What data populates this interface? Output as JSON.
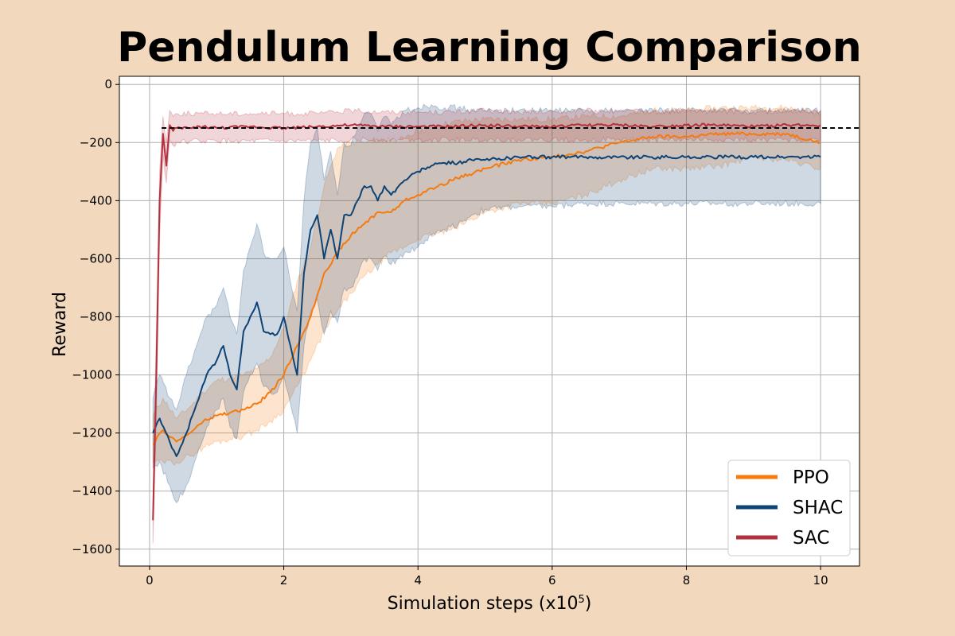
{
  "chart_data": {
    "type": "line",
    "title": "Pendulum Learning Comparison",
    "xlabel": "Simulation steps (x10",
    "xlabel_sup": "5",
    "xlabel_close": ")",
    "ylabel": "Reward",
    "xlim": [
      -0.45,
      10.58
    ],
    "ylim": [
      -1658,
      28
    ],
    "xticks": [
      0,
      2,
      4,
      6,
      8,
      10
    ],
    "xtick_labels": [
      "0",
      "2",
      "4",
      "6",
      "8",
      "10"
    ],
    "yticks": [
      0,
      -200,
      -400,
      -600,
      -800,
      -1000,
      -1200,
      -1400,
      -1600
    ],
    "ytick_labels": [
      "0",
      "−200",
      "−400",
      "−600",
      "−800",
      "−1000",
      "−1200",
      "−1400",
      "−1600"
    ],
    "grid": true,
    "legend_position": "lower-right",
    "reference_line": {
      "y": -150,
      "style": "dashed",
      "color": "#000000"
    },
    "series": [
      {
        "name": "PPO",
        "color": "#f57a0f",
        "x": [
          0.05,
          0.2,
          0.4,
          0.6,
          0.8,
          1.0,
          1.2,
          1.4,
          1.6,
          1.8,
          2.0,
          2.2,
          2.4,
          2.6,
          2.8,
          3.0,
          3.2,
          3.4,
          3.6,
          3.8,
          4.0,
          4.5,
          5.0,
          5.5,
          6.0,
          6.5,
          7.0,
          7.5,
          8.0,
          8.5,
          9.0,
          9.5,
          10.0
        ],
        "y": [
          -1240,
          -1190,
          -1230,
          -1200,
          -1160,
          -1140,
          -1130,
          -1120,
          -1100,
          -1060,
          -1000,
          -900,
          -800,
          -650,
          -580,
          -520,
          -480,
          -440,
          -440,
          -400,
          -380,
          -330,
          -290,
          -260,
          -250,
          -230,
          -200,
          -180,
          -180,
          -170,
          -170,
          -170,
          -200
        ],
        "low": [
          -1300,
          -1300,
          -1300,
          -1280,
          -1250,
          -1230,
          -1220,
          -1210,
          -1190,
          -1160,
          -1120,
          -1040,
          -950,
          -850,
          -780,
          -720,
          -660,
          -620,
          -580,
          -560,
          -530,
          -500,
          -440,
          -410,
          -410,
          -380,
          -330,
          -290,
          -290,
          -280,
          -250,
          -260,
          -290
        ],
        "high": [
          -1140,
          -1080,
          -1150,
          -1110,
          -1060,
          -1020,
          -1010,
          -1000,
          -980,
          -940,
          -840,
          -680,
          -560,
          -350,
          -220,
          -200,
          -200,
          -190,
          -190,
          -190,
          -160,
          -130,
          -120,
          -120,
          -120,
          -110,
          -110,
          -90,
          -90,
          -80,
          -80,
          -80,
          -100
        ]
      },
      {
        "name": "SHAC",
        "color": "#0e4375",
        "x": [
          0.05,
          0.15,
          0.3,
          0.4,
          0.55,
          0.7,
          0.85,
          1.0,
          1.1,
          1.2,
          1.3,
          1.4,
          1.5,
          1.6,
          1.7,
          1.8,
          1.9,
          2.0,
          2.1,
          2.2,
          2.3,
          2.4,
          2.5,
          2.6,
          2.7,
          2.8,
          2.9,
          3.0,
          3.1,
          3.2,
          3.3,
          3.4,
          3.5,
          3.6,
          3.8,
          4.0,
          4.2,
          4.4,
          4.6,
          4.8,
          5.0,
          5.5,
          6.0,
          6.5,
          7.0,
          8.0,
          9.0,
          10.0
        ],
        "y": [
          -1200,
          -1150,
          -1230,
          -1280,
          -1200,
          -1100,
          -1000,
          -950,
          -900,
          -1000,
          -1050,
          -850,
          -800,
          -750,
          -850,
          -860,
          -860,
          -800,
          -900,
          -1000,
          -650,
          -500,
          -450,
          -600,
          -500,
          -600,
          -450,
          -450,
          -400,
          -350,
          -350,
          -400,
          -350,
          -380,
          -330,
          -300,
          -280,
          -270,
          -270,
          -260,
          -260,
          -250,
          -250,
          -250,
          -250,
          -250,
          -250,
          -250
        ],
        "low": [
          -1320,
          -1300,
          -1380,
          -1440,
          -1380,
          -1280,
          -1180,
          -1120,
          -1080,
          -1180,
          -1220,
          -1060,
          -1000,
          -960,
          -1040,
          -1060,
          -1060,
          -1000,
          -1100,
          -1200,
          -900,
          -780,
          -740,
          -860,
          -780,
          -820,
          -700,
          -700,
          -660,
          -600,
          -600,
          -640,
          -590,
          -620,
          -580,
          -560,
          -520,
          -500,
          -480,
          -450,
          -430,
          -420,
          -420,
          -410,
          -410,
          -410,
          -410,
          -410
        ],
        "high": [
          -1080,
          -1000,
          -1080,
          -1120,
          -1000,
          -900,
          -800,
          -760,
          -700,
          -800,
          -860,
          -640,
          -560,
          -480,
          -580,
          -600,
          -600,
          -560,
          -680,
          -780,
          -400,
          -200,
          -150,
          -330,
          -230,
          -380,
          -200,
          -210,
          -150,
          -100,
          -100,
          -160,
          -110,
          -140,
          -90,
          -80,
          -70,
          -80,
          -80,
          -90,
          -90,
          -90,
          -90,
          -90,
          -90,
          -90,
          -90,
          -90
        ]
      },
      {
        "name": "SAC",
        "color": "#b3303e",
        "x": [
          0.05,
          0.1,
          0.15,
          0.2,
          0.25,
          0.3,
          0.35,
          0.4,
          0.6,
          0.8,
          1.0,
          1.5,
          2.0,
          2.5,
          3.0,
          3.5,
          4.0,
          4.5,
          5.0,
          5.5,
          6.0,
          6.5,
          7.0,
          7.5,
          8.0,
          8.5,
          9.0,
          9.5,
          10.0
        ],
        "y": [
          -1500,
          -1000,
          -400,
          -170,
          -280,
          -140,
          -160,
          -150,
          -150,
          -145,
          -150,
          -145,
          -150,
          -145,
          -140,
          -145,
          -145,
          -145,
          -140,
          -145,
          -145,
          -140,
          -140,
          -145,
          -140,
          -140,
          -145,
          -140,
          -140
        ],
        "low": [
          -1580,
          -1150,
          -520,
          -240,
          -340,
          -190,
          -210,
          -200,
          -195,
          -195,
          -195,
          -195,
          -195,
          -195,
          -190,
          -190,
          -190,
          -190,
          -190,
          -190,
          -190,
          -190,
          -190,
          -190,
          -190,
          -190,
          -190,
          -190,
          -190
        ],
        "high": [
          -1400,
          -850,
          -300,
          -110,
          -200,
          -90,
          -110,
          -100,
          -100,
          -100,
          -100,
          -100,
          -100,
          -100,
          -90,
          -95,
          -95,
          -95,
          -90,
          -95,
          -95,
          -90,
          -90,
          -95,
          -90,
          -90,
          -95,
          -90,
          -90
        ]
      }
    ]
  }
}
